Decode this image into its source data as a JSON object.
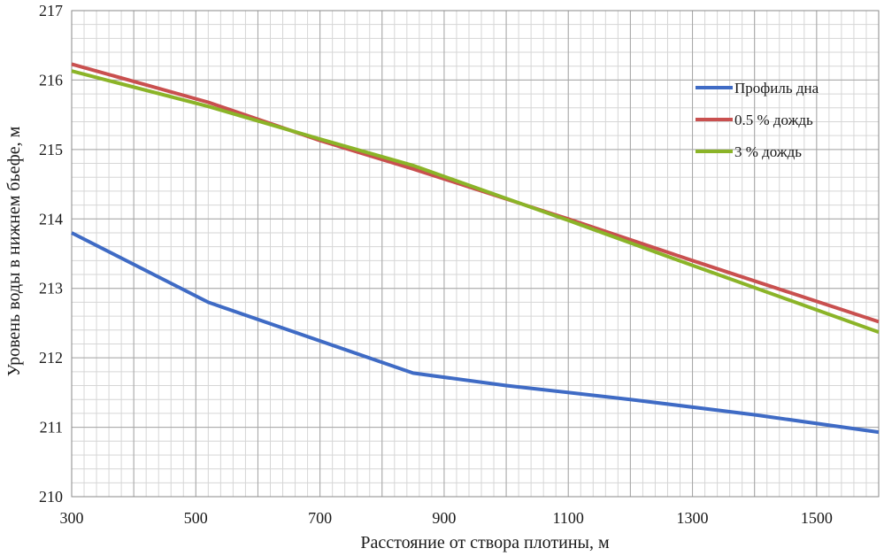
{
  "chart_data": {
    "type": "line",
    "title": "",
    "xlabel": "Расстояние от створа плотины, м",
    "ylabel": "Уровень воды в нижнем бьефе, м",
    "xlim": [
      300,
      1600
    ],
    "ylim": [
      210,
      217
    ],
    "x_ticks": [
      300,
      500,
      700,
      900,
      1100,
      1300,
      1500
    ],
    "y_ticks": [
      210,
      211,
      212,
      213,
      214,
      215,
      216,
      217
    ],
    "x_tick_labels": [
      "300",
      "500",
      "700",
      "900",
      "1100",
      "1300",
      "1500"
    ],
    "y_tick_labels": [
      "210",
      "211",
      "212",
      "213",
      "214",
      "215",
      "216",
      "217"
    ],
    "grid": true,
    "legend_position": "right",
    "series": [
      {
        "name": "Профиль дна",
        "color": "#3f6bc5",
        "x": [
          300,
          520,
          850,
          1000,
          1200,
          1400,
          1600
        ],
        "y": [
          213.8,
          212.8,
          211.78,
          211.6,
          211.4,
          211.18,
          210.93
        ]
      },
      {
        "name": "0.5 % дождь",
        "color": "#c9504f",
        "x": [
          300,
          520,
          700,
          850,
          1100,
          1300,
          1600
        ],
        "y": [
          216.23,
          215.68,
          215.13,
          214.72,
          214.0,
          213.4,
          212.52
        ]
      },
      {
        "name": "3 % дождь",
        "color": "#8bb428",
        "x": [
          300,
          520,
          700,
          850,
          1100,
          1300,
          1600
        ],
        "y": [
          216.13,
          215.62,
          215.15,
          214.77,
          213.98,
          213.33,
          212.37
        ]
      }
    ]
  }
}
